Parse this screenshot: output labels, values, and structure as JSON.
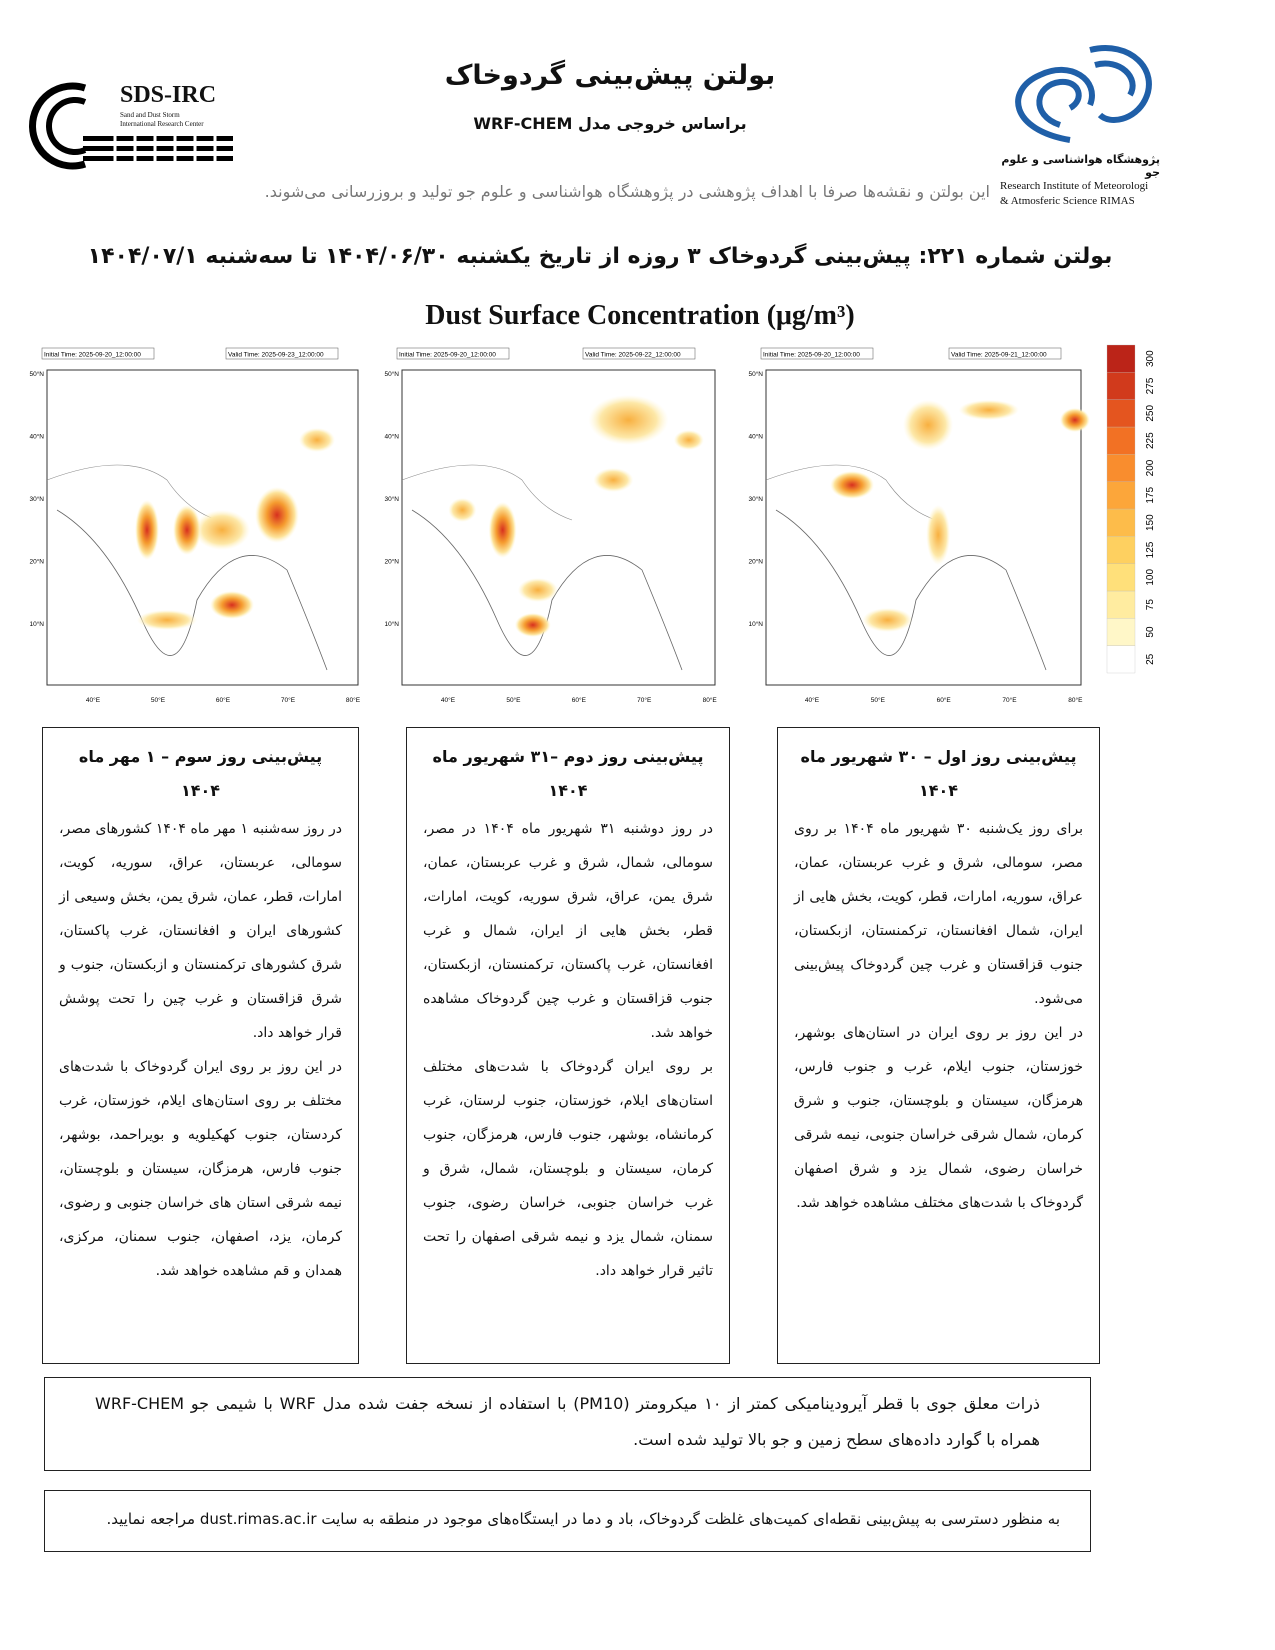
{
  "header": {
    "title": "بولتن پیش‌بینی گردوخاک",
    "subtitle": "براساس خروجی مدل WRF-CHEM",
    "disclaimer": "این بولتن و نقشه‌ها صرفا با اهداف پژوهشی در پژوهشگاه هواشناسی و علوم جو تولید و بروزرسانی می‌شوند.",
    "logo_left": {
      "name": "SDS-IRC",
      "line1": "Sand and Dust Storm",
      "line2": "International Research Center"
    },
    "logo_right": {
      "name_fa": "پژوهشگاه هواشناسی و علوم جو",
      "line1": "Research Institute of Meteorologi",
      "line2": "& Atmosferic Science RIMAS"
    }
  },
  "bulletin_title": "بولتن شماره ۲۲۱: پیش‌بینی گردوخاک ۳ روزه از تاریخ یکشنبه ۱۴۰۴/۰۶/۳۰ تا سه‌شنبه ۱۴۰۴/۰۷/۱",
  "maps": {
    "title": "Dust Surface Concentration (μg/m³)",
    "lat_ticks": [
      "50°N",
      "40°N",
      "30°N",
      "20°N",
      "10°N"
    ],
    "lon_ticks": [
      "40°E",
      "50°E",
      "60°E",
      "70°E",
      "80°E"
    ],
    "panels": [
      {
        "initial_time": "Initial Time: 2025-09-20_12:00:00",
        "valid_time": "Valid Time: 2025-09-23_12:00:00"
      },
      {
        "initial_time": "Initial Time: 2025-09-20_12:00:00",
        "valid_time": "Valid Time: 2025-09-22_12:00:00"
      },
      {
        "initial_time": "Initial Time: 2025-09-20_12:00:00",
        "valid_time": "Valid Time: 2025-09-21_12:00:00"
      }
    ],
    "colorbar_ticks": [
      25,
      50,
      75,
      100,
      125,
      150,
      175,
      200,
      225,
      250,
      275,
      300
    ]
  },
  "forecasts": [
    {
      "heading": "پیش‌بینی روز سوم – ۱ مهر ماه ۱۴۰۴",
      "paragraphs": [
        "در روز سه‌شنبه ۱ مهر ماه ۱۴۰۴ کشورهای مصر، سومالی، عربستان، عراق، سوریه، کویت، امارات، قطر، عمان، شرق یمن، بخش وسیعی از کشورهای ایران و افغانستان، غرب پاکستان، شرق کشورهای ترکمنستان و ازبکستان، جنوب و شرق قزاقستان و غرب چین را تحت پوشش قرار خواهد داد.",
        "در این روز بر روی ایران گردوخاک با شدت‌های مختلف بر روی استان‌های ایلام، خوزستان، غرب کردستان، جنوب کهکیلویه و بویراحمد، بوشهر، جنوب فارس، هرمزگان، سیستان و بلوچستان، نیمه شرقی استان های خراسان جنوبی و رضوی، کرمان، یزد، اصفهان، جنوب سمنان، مرکزی، همدان و قم مشاهده خواهد شد."
      ]
    },
    {
      "heading": "پیش‌بینی روز دوم –۳۱ شهریور ماه ۱۴۰۴",
      "paragraphs": [
        "در روز دوشنبه ۳۱ شهریور ماه ۱۴۰۴ در مصر، سومالی، شمال، شرق و غرب عربستان، عمان، شرق یمن، عراق، شرق سوریه، کویت، امارات، قطر، بخش هایی از ایران، شمال و غرب افغانستان، غرب پاکستان، ترکمنستان، ازبکستان، جنوب قزاقستان و غرب چین گردوخاک مشاهده خواهد شد.",
        "بر روی ایران گردوخاک با شدت‌های مختلف استان‌های ایلام، خوزستان، جنوب لرستان، غرب کرمانشاه، بوشهر، جنوب فارس، هرمزگان، جنوب کرمان، سیستان و بلوچستان، شمال، شرق و غرب خراسان جنوبی، خراسان رضوی، جنوب سمنان، شمال یزد و نیمه شرقی اصفهان را تحت تاثیر قرار خواهد داد."
      ]
    },
    {
      "heading": "پیش‌بینی روز اول – ۳۰ شهریور ماه ۱۴۰۴",
      "paragraphs": [
        "برای روز یک‌شنبه ۳۰ شهریور ماه ۱۴۰۴ بر روی مصر، سومالی، شرق و غرب عربستان، عمان، عراق، سوریه، امارات، قطر، کویت، بخش هایی از ایران، شمال افغانستان، ترکمنستان، ازبکستان، جنوب قزاقستان و غرب چین گردوخاک پیش‌بینی می‌شود.",
        "در این روز بر روی ایران در استان‌های بوشهر، خوزستان، جنوب ایلام، غرب و جنوب فارس، هرمزگان، سیستان و بلوچستان، جنوب و شرق کرمان، شمال شرقی خراسان جنوبی، نیمه شرقی خراسان رضوی، شمال یزد و شرق اصفهان گردوخاک با شدت‌های مختلف مشاهده خواهد شد."
      ]
    }
  ],
  "notes": [
    "ذرات معلق جوی با قطر آیرودینامیکی کمتر از ۱۰ میکرومتر (PM10) با استفاده از نسخه جفت شده مدل WRF با شیمی جو WRF-CHEM همراه با گوارد داده‌های سطح زمین و جو بالا تولید شده است.",
    "به منظور دسترسی به پیش‌بینی نقطه‌ای کمیت‌های غلظت گردوخاک، باد و دما در ایستگاه‌های موجود در منطقه به سایت dust.rimas.ac.ir مراجعه نمایید."
  ]
}
